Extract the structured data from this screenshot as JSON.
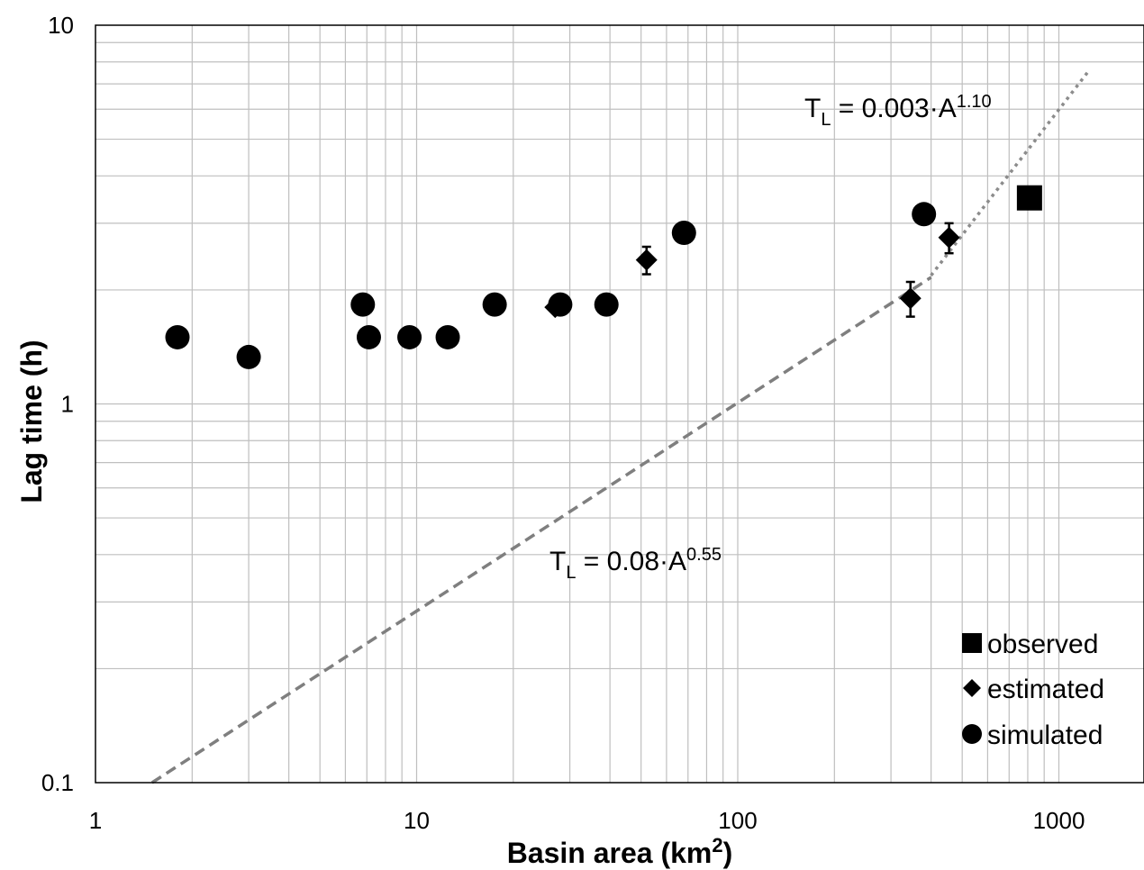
{
  "chart_data": {
    "type": "scatter",
    "xlabel": "Basin area (km",
    "xlabel_sup": "2",
    "xlabel_end": ")",
    "ylabel": "Lag time (h)",
    "x_scale": "log",
    "y_scale": "log",
    "xlim": [
      1,
      1800
    ],
    "ylim": [
      0.1,
      10
    ],
    "grid": true,
    "legend_position": "bottom-right",
    "x_ticks": [
      {
        "value": 1,
        "label": "1"
      },
      {
        "value": 10,
        "label": "10"
      },
      {
        "value": 100,
        "label": "100"
      },
      {
        "value": 1000,
        "label": "1000"
      }
    ],
    "y_ticks": [
      {
        "value": 0.1,
        "label": "0.1"
      },
      {
        "value": 1,
        "label": "1"
      },
      {
        "value": 10,
        "label": "10"
      }
    ],
    "series": [
      {
        "name": "simulated",
        "marker": "circle",
        "points": [
          {
            "x": 1.8,
            "y": 1.5
          },
          {
            "x": 3.0,
            "y": 1.33
          },
          {
            "x": 6.8,
            "y": 1.83
          },
          {
            "x": 7.1,
            "y": 1.5
          },
          {
            "x": 9.5,
            "y": 1.5
          },
          {
            "x": 12.5,
            "y": 1.5
          },
          {
            "x": 17.5,
            "y": 1.83
          },
          {
            "x": 28,
            "y": 1.83
          },
          {
            "x": 39,
            "y": 1.83
          },
          {
            "x": 68,
            "y": 2.83
          },
          {
            "x": 380,
            "y": 3.17
          }
        ]
      },
      {
        "name": "estimated",
        "marker": "diamond",
        "points": [
          {
            "x": 27,
            "y": 1.8,
            "err": 0
          },
          {
            "x": 52,
            "y": 2.4,
            "err": 0.2
          },
          {
            "x": 345,
            "y": 1.9,
            "err": 0.2
          },
          {
            "x": 455,
            "y": 2.75,
            "err": 0.25
          }
        ]
      },
      {
        "name": "observed",
        "marker": "square",
        "points": [
          {
            "x": 810,
            "y": 3.5
          }
        ]
      }
    ],
    "lines": [
      {
        "coef": 0.08,
        "exp": 0.55,
        "x_from": 1.5,
        "x_to": 400,
        "style": "dashed",
        "color": "#7f7f7f"
      },
      {
        "coef": 0.003,
        "exp": 1.1,
        "x_from": 400,
        "x_to": 1250,
        "style": "dotted",
        "color": "#8c8c8c"
      }
    ],
    "annotations": [
      {
        "base": "T",
        "sub": "L",
        "mid": " = 0.08·A",
        "sup": "0.55"
      },
      {
        "base": "T",
        "sub": "L",
        "mid": " = 0.003·A",
        "sup": "1.10"
      }
    ],
    "legend": [
      {
        "label": "observed",
        "marker": "square"
      },
      {
        "label": "estimated",
        "marker": "diamond"
      },
      {
        "label": "simulated",
        "marker": "circle"
      }
    ]
  }
}
